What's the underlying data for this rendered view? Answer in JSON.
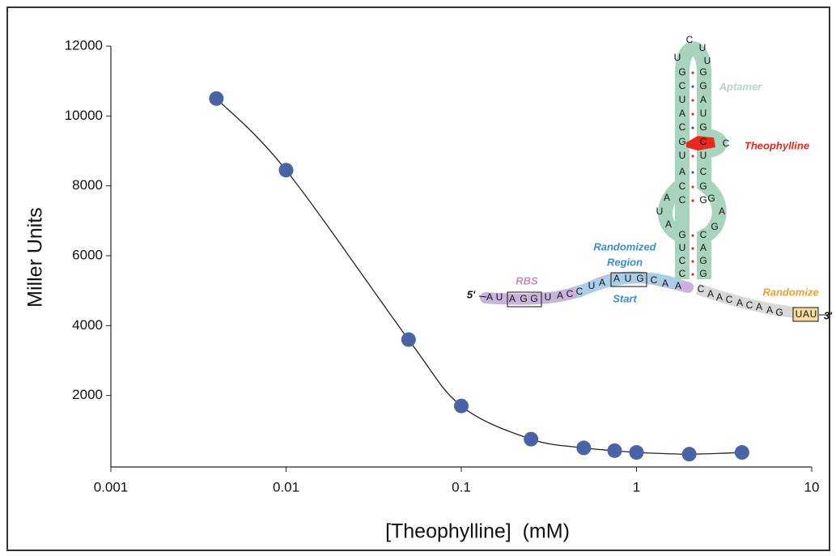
{
  "chart_data": {
    "type": "line",
    "x_label": "[Theophylline]  (mM)",
    "y_label": "Miller Units",
    "x": [
      0.004,
      0.01,
      0.05,
      0.1,
      0.25,
      0.5,
      0.75,
      1,
      2,
      4
    ],
    "values": [
      10500,
      8450,
      3600,
      1700,
      750,
      500,
      420,
      370,
      320,
      370
    ],
    "color": "#4a62a6",
    "line_color": "#222222",
    "xscale": "log",
    "xlim": [
      0.001,
      10
    ],
    "xticks": [
      0.001,
      0.01,
      0.1,
      1,
      10
    ],
    "ylim": [
      0,
      12000
    ],
    "yticks": [
      2000,
      4000,
      6000,
      8000,
      10000,
      12000
    ],
    "grid": false
  },
  "diagram": {
    "labels": {
      "aptamer": "Aptamer",
      "theophylline": "Theophylline",
      "randomized_region": [
        "Randomized",
        "Region"
      ],
      "start": "Start",
      "rbs": "RBS",
      "randomize": "Randomize",
      "five_prime": "5'",
      "three_prime": "3'"
    },
    "left_strand": [
      "A",
      "U",
      "A",
      "G",
      "G",
      "U",
      "A",
      "C",
      "C",
      "U",
      "A",
      "A",
      "U",
      "G",
      "C",
      "A",
      "A"
    ],
    "right_strand": [
      "C",
      "A",
      "A",
      "C",
      "A",
      "C",
      "A",
      "A",
      "G",
      "U",
      "A",
      "U"
    ],
    "top_loop": [
      "U",
      "C",
      "U",
      "U"
    ],
    "upper_stem": [
      [
        "G",
        "G"
      ],
      [
        "C",
        "G"
      ],
      [
        "U",
        "A"
      ],
      [
        "A",
        "U"
      ],
      [
        "C",
        "G"
      ],
      [
        "G",
        "C"
      ],
      [
        "U",
        "U"
      ],
      [
        "A",
        "C"
      ],
      [
        "C",
        "G"
      ],
      [
        "C",
        "G"
      ]
    ],
    "bulge": [
      "C"
    ],
    "internal_loop_left": [
      "A",
      "U",
      "A"
    ],
    "internal_loop_right": [
      "G",
      "A",
      "G"
    ],
    "lower_stem": [
      [
        "G",
        "C"
      ],
      [
        "U",
        "A"
      ],
      [
        "C",
        "G"
      ],
      [
        "C",
        "G"
      ]
    ]
  }
}
